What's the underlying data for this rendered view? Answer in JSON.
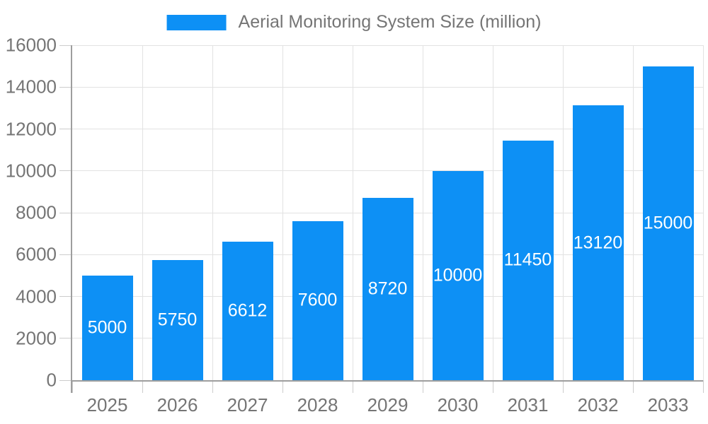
{
  "chart_data": {
    "type": "bar",
    "title": "Aerial Monitoring System Size (million)",
    "categories": [
      "2025",
      "2026",
      "2027",
      "2028",
      "2029",
      "2030",
      "2031",
      "2032",
      "2033"
    ],
    "values": [
      5000,
      5750,
      6612,
      7600,
      8720,
      10000,
      11450,
      13120,
      15000
    ],
    "xlabel": "",
    "ylabel": "",
    "ylim": [
      0,
      16000
    ],
    "ytick_step": 2000,
    "ytick_labels": [
      "0",
      "2000",
      "4000",
      "6000",
      "8000",
      "10000",
      "12000",
      "14000",
      "16000"
    ],
    "grid": true,
    "legend_position": "top-center",
    "value_labels": "inside-center",
    "colors": {
      "bar": "#0d90f5",
      "value_label": "#ffffff",
      "axis_text": "#757575",
      "grid_line": "#e2e2e2",
      "tick": "#cccccc",
      "axis_line": "#9e9e9e",
      "background": "#ffffff"
    }
  }
}
